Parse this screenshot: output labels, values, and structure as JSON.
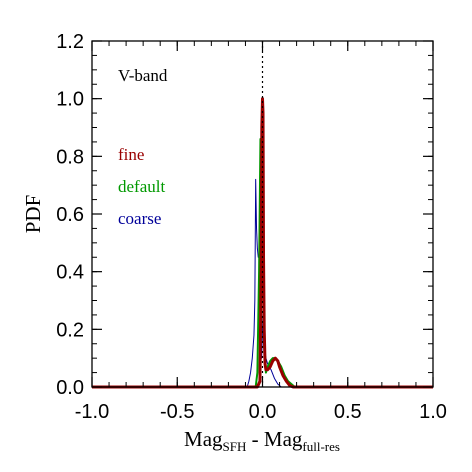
{
  "chart_data": {
    "type": "line",
    "title": "",
    "annotation": "V-band",
    "xlabel": {
      "main": "Mag",
      "sub1": "SFH",
      "mid": " - Mag",
      "sub2": "full-res"
    },
    "ylabel": "PDF",
    "xlim": [
      -1.0,
      1.0
    ],
    "ylim": [
      0.0,
      1.2
    ],
    "xticks": [
      -1.0,
      -0.5,
      0.0,
      0.5,
      1.0
    ],
    "xtick_labels": [
      "-1.0",
      "-0.5",
      "0.0",
      "0.5",
      "1.0"
    ],
    "yticks": [
      0.0,
      0.2,
      0.4,
      0.6,
      0.8,
      1.0,
      1.2
    ],
    "ytick_labels": [
      "0.0",
      "0.2",
      "0.4",
      "0.6",
      "0.8",
      "1.0",
      "1.2"
    ],
    "reference_line_x": 0.0,
    "legend_placement": "left",
    "series": [
      {
        "name": "fine",
        "color": "#990000",
        "x": [
          -1.0,
          -0.03,
          -0.015,
          -0.008,
          -0.004,
          0.0,
          0.003,
          0.006,
          0.01,
          0.015,
          0.02,
          0.03,
          0.045,
          0.06,
          0.075,
          0.09,
          0.1,
          0.12,
          0.14,
          0.16,
          0.18,
          1.0
        ],
        "y": [
          0.0,
          0.0,
          0.02,
          0.4,
          0.9,
          1.0,
          0.95,
          0.45,
          0.2,
          0.08,
          0.06,
          0.06,
          0.07,
          0.09,
          0.1,
          0.09,
          0.07,
          0.04,
          0.02,
          0.005,
          0.0,
          0.0
        ]
      },
      {
        "name": "default",
        "color": "#009900",
        "x": [
          -1.0,
          -0.04,
          -0.03,
          -0.02,
          -0.012,
          -0.006,
          -0.002,
          0.003,
          0.008,
          0.014,
          0.02,
          0.03,
          0.045,
          0.06,
          0.075,
          0.09,
          0.11,
          0.13,
          0.15,
          0.17,
          0.19,
          1.0
        ],
        "y": [
          0.0,
          0.0,
          0.05,
          0.4,
          0.86,
          0.62,
          0.47,
          0.45,
          0.16,
          0.1,
          0.05,
          0.07,
          0.09,
          0.1,
          0.1,
          0.09,
          0.07,
          0.04,
          0.02,
          0.01,
          0.0,
          0.0
        ]
      },
      {
        "name": "coarse",
        "color": "#000099",
        "x": [
          -1.0,
          -0.09,
          -0.08,
          -0.07,
          -0.06,
          -0.05,
          -0.045,
          -0.04,
          -0.035,
          -0.03,
          -0.025,
          -0.02,
          -0.015,
          -0.01,
          -0.005,
          0.0,
          0.005,
          0.01,
          0.015,
          0.02,
          0.03,
          0.05,
          0.07,
          0.09,
          0.11,
          1.0
        ],
        "y": [
          0.0,
          0.0,
          0.02,
          0.05,
          0.1,
          0.18,
          0.3,
          0.72,
          0.55,
          0.48,
          0.45,
          0.45,
          0.34,
          0.12,
          0.1,
          0.2,
          0.32,
          0.28,
          0.12,
          0.1,
          0.08,
          0.06,
          0.03,
          0.01,
          0.0,
          0.0
        ]
      }
    ]
  }
}
